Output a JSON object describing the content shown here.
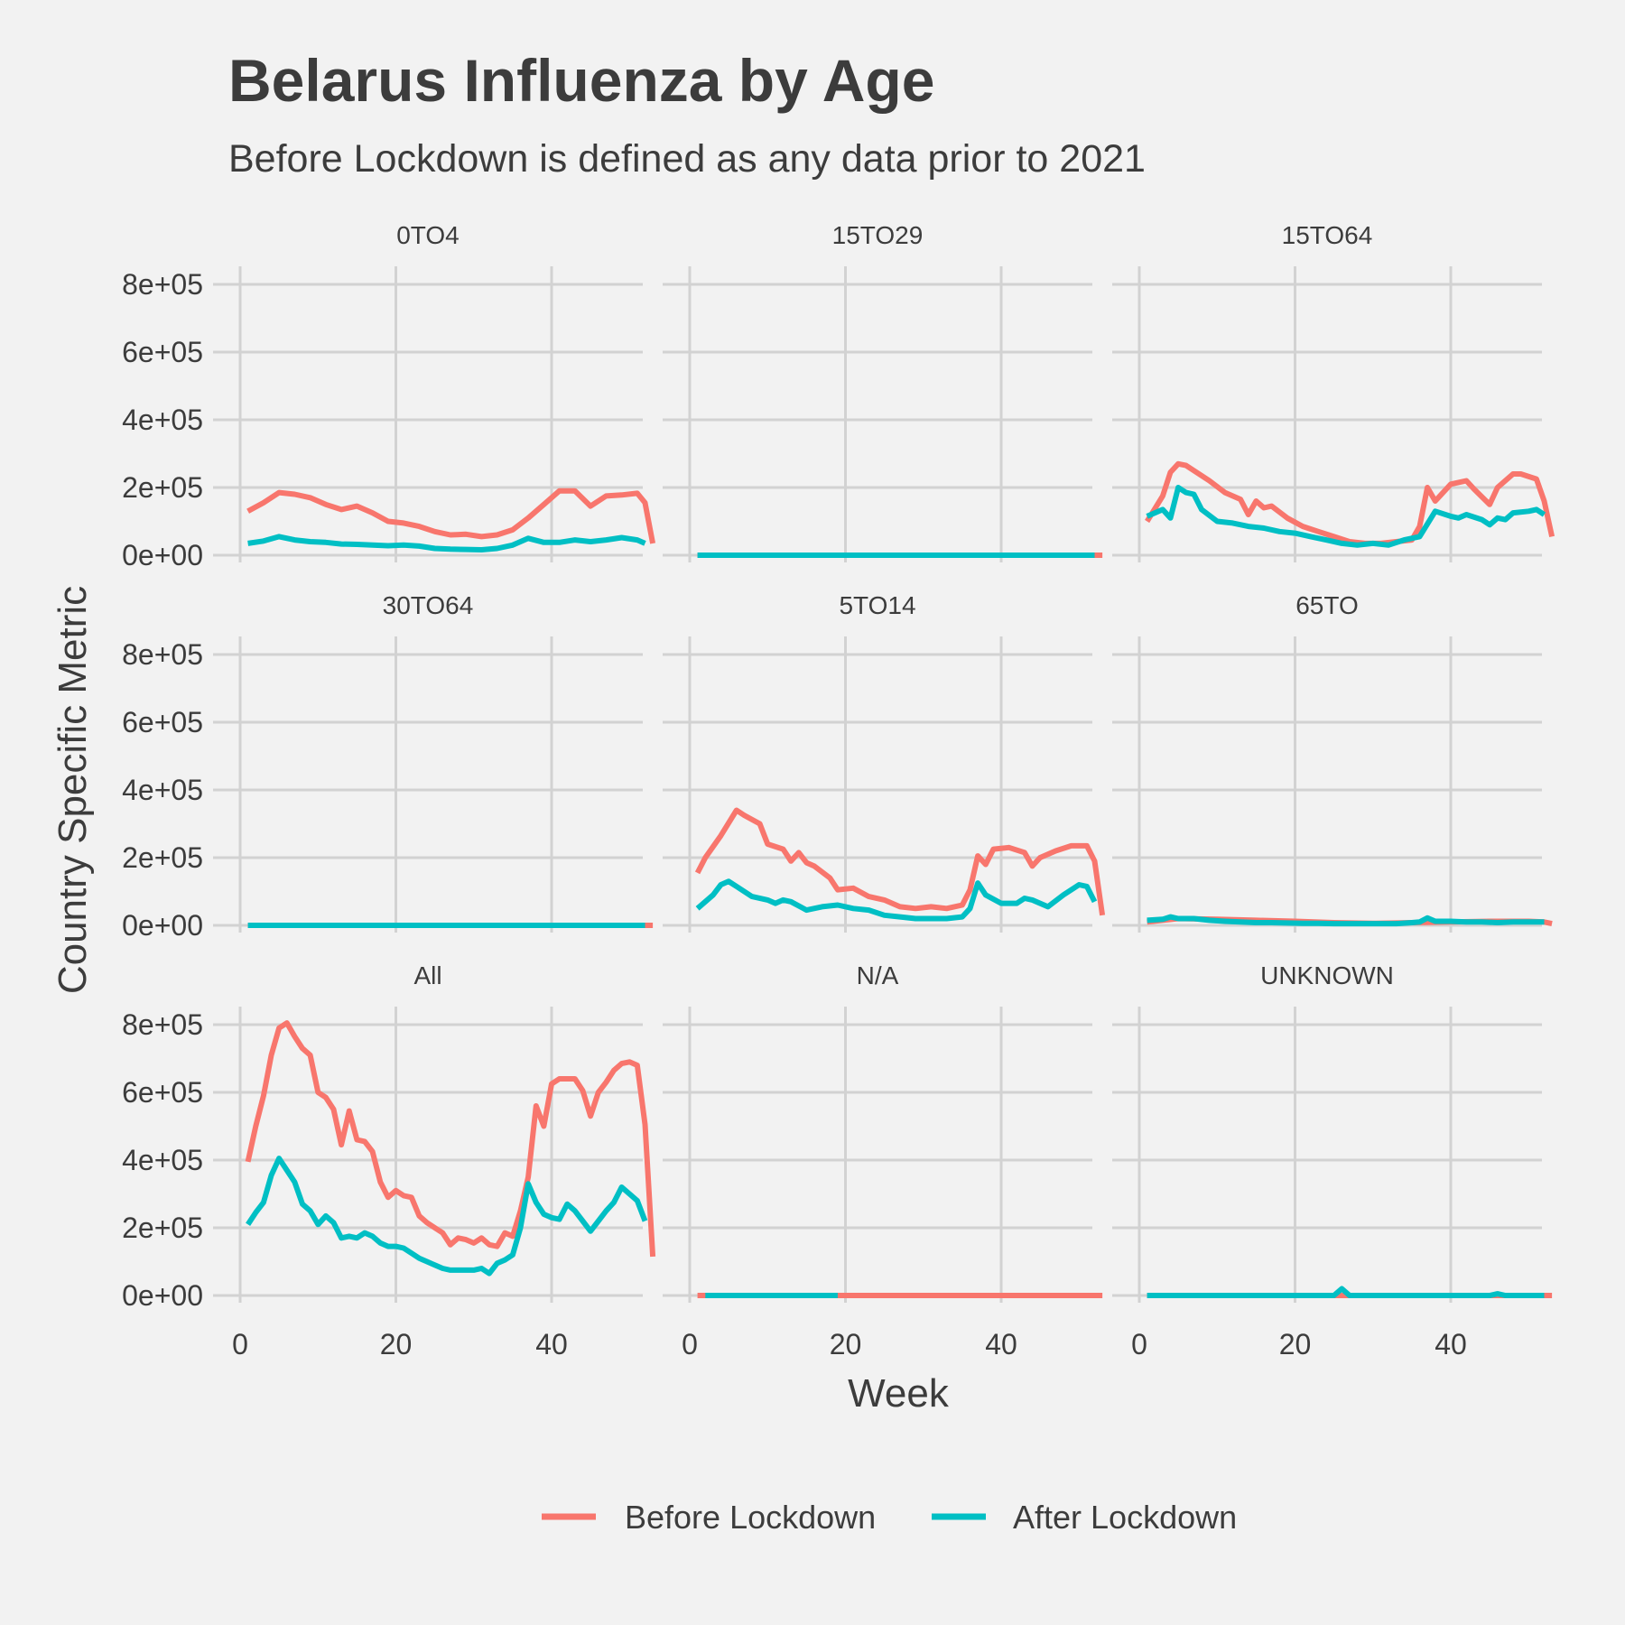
{
  "chart_data": {
    "type": "line",
    "title": "Belarus Influenza by Age",
    "subtitle": "Before Lockdown is defined as any data prior to 2021",
    "xlabel": "Week",
    "ylabel": "Country Specific Metric",
    "xlim": [
      0,
      53
    ],
    "ylim": [
      0,
      800000
    ],
    "x_ticks": [
      0,
      20,
      40
    ],
    "x_tick_labels": [
      "0",
      "20",
      "40"
    ],
    "y_ticks": [
      0,
      200000,
      400000,
      600000,
      800000
    ],
    "y_tick_labels": [
      "0e+00",
      "2e+05",
      "4e+05",
      "6e+05",
      "8e+05"
    ],
    "grid": true,
    "legend": {
      "placement": "bottom",
      "entries": [
        {
          "name": "Before Lockdown",
          "color": "#F8766D"
        },
        {
          "name": "After Lockdown",
          "color": "#00BFC4"
        }
      ]
    },
    "facets": [
      {
        "label": "0TO4",
        "series": [
          {
            "name": "Before Lockdown",
            "color": "#F8766D",
            "x": [
              1,
              3,
              5,
              7,
              9,
              11,
              13,
              15,
              17,
              19,
              21,
              23,
              25,
              27,
              29,
              31,
              33,
              35,
              37,
              39,
              41,
              43,
              45,
              47,
              49,
              51,
              52,
              53
            ],
            "y": [
              130000,
              155000,
              185000,
              180000,
              170000,
              150000,
              135000,
              145000,
              125000,
              100000,
              95000,
              85000,
              70000,
              60000,
              62000,
              55000,
              60000,
              75000,
              110000,
              150000,
              190000,
              190000,
              145000,
              175000,
              178000,
              183000,
              155000,
              35000
            ]
          },
          {
            "name": "After Lockdown",
            "color": "#00BFC4",
            "x": [
              1,
              3,
              5,
              7,
              9,
              11,
              13,
              15,
              17,
              19,
              21,
              23,
              25,
              27,
              29,
              31,
              33,
              35,
              37,
              39,
              41,
              43,
              45,
              47,
              49,
              51,
              52
            ],
            "y": [
              35000,
              42000,
              55000,
              45000,
              40000,
              38000,
              33000,
              32000,
              30000,
              28000,
              30000,
              27000,
              20000,
              18000,
              17000,
              16000,
              20000,
              30000,
              50000,
              38000,
              38000,
              45000,
              40000,
              45000,
              52000,
              45000,
              35000
            ]
          }
        ]
      },
      {
        "label": "15TO29",
        "series": [
          {
            "name": "Before Lockdown",
            "color": "#F8766D",
            "x": [
              1,
              53
            ],
            "y": [
              0,
              0
            ]
          },
          {
            "name": "After Lockdown",
            "color": "#00BFC4",
            "x": [
              1,
              52
            ],
            "y": [
              0,
              0
            ]
          }
        ]
      },
      {
        "label": "15TO64",
        "series": [
          {
            "name": "Before Lockdown",
            "color": "#F8766D",
            "x": [
              1,
              3,
              4,
              5,
              6,
              7,
              9,
              11,
              13,
              14,
              15,
              16,
              17,
              19,
              21,
              23,
              25,
              27,
              29,
              31,
              33,
              35,
              36,
              37,
              38,
              40,
              42,
              43,
              45,
              46,
              48,
              49,
              51,
              52,
              53
            ],
            "y": [
              100000,
              175000,
              245000,
              270000,
              265000,
              250000,
              220000,
              185000,
              165000,
              120000,
              160000,
              140000,
              145000,
              110000,
              85000,
              70000,
              55000,
              40000,
              35000,
              35000,
              40000,
              45000,
              85000,
              200000,
              160000,
              210000,
              220000,
              195000,
              150000,
              200000,
              240000,
              240000,
              225000,
              160000,
              55000
            ]
          },
          {
            "name": "After Lockdown",
            "color": "#00BFC4",
            "x": [
              1,
              2,
              3,
              4,
              5,
              6,
              7,
              8,
              10,
              12,
              14,
              16,
              18,
              20,
              22,
              24,
              26,
              28,
              30,
              32,
              34,
              36,
              38,
              40,
              41,
              42,
              44,
              45,
              46,
              47,
              48,
              50,
              51,
              52
            ],
            "y": [
              115000,
              125000,
              135000,
              110000,
              200000,
              185000,
              180000,
              135000,
              100000,
              95000,
              85000,
              80000,
              70000,
              65000,
              55000,
              45000,
              35000,
              30000,
              35000,
              30000,
              45000,
              55000,
              130000,
              115000,
              110000,
              120000,
              105000,
              90000,
              110000,
              105000,
              125000,
              130000,
              135000,
              120000
            ]
          }
        ]
      },
      {
        "label": "30TO64",
        "series": [
          {
            "name": "Before Lockdown",
            "color": "#F8766D",
            "x": [
              1,
              53
            ],
            "y": [
              0,
              0
            ]
          },
          {
            "name": "After Lockdown",
            "color": "#00BFC4",
            "x": [
              1,
              52
            ],
            "y": [
              0,
              0
            ]
          }
        ]
      },
      {
        "label": "5TO14",
        "series": [
          {
            "name": "Before Lockdown",
            "color": "#F8766D",
            "x": [
              1,
              2,
              4,
              6,
              7,
              9,
              10,
              12,
              13,
              14,
              15,
              16,
              18,
              19,
              21,
              23,
              25,
              27,
              29,
              31,
              33,
              35,
              36,
              37,
              38,
              39,
              41,
              43,
              44,
              45,
              47,
              49,
              51,
              52,
              53
            ],
            "y": [
              155000,
              200000,
              265000,
              340000,
              325000,
              300000,
              240000,
              225000,
              190000,
              215000,
              185000,
              175000,
              140000,
              105000,
              110000,
              85000,
              75000,
              55000,
              50000,
              55000,
              50000,
              60000,
              105000,
              205000,
              180000,
              225000,
              230000,
              215000,
              175000,
              200000,
              220000,
              235000,
              235000,
              190000,
              30000
            ]
          },
          {
            "name": "After Lockdown",
            "color": "#00BFC4",
            "x": [
              1,
              3,
              4,
              5,
              6,
              8,
              10,
              11,
              12,
              13,
              15,
              17,
              19,
              21,
              23,
              25,
              27,
              29,
              31,
              33,
              35,
              36,
              37,
              38,
              40,
              42,
              43,
              44,
              46,
              48,
              50,
              51,
              52
            ],
            "y": [
              50000,
              90000,
              120000,
              130000,
              115000,
              85000,
              75000,
              65000,
              75000,
              70000,
              45000,
              55000,
              60000,
              50000,
              45000,
              30000,
              25000,
              20000,
              20000,
              20000,
              25000,
              50000,
              125000,
              90000,
              65000,
              65000,
              80000,
              75000,
              55000,
              90000,
              120000,
              115000,
              70000
            ]
          }
        ]
      },
      {
        "label": "65TO",
        "series": [
          {
            "name": "Before Lockdown",
            "color": "#F8766D",
            "x": [
              1,
              5,
              10,
              15,
              20,
              25,
              30,
              35,
              40,
              45,
              50,
              52,
              53
            ],
            "y": [
              10000,
              20000,
              18000,
              15000,
              12000,
              8000,
              6000,
              8000,
              10000,
              12000,
              12000,
              10000,
              5000
            ]
          },
          {
            "name": "After Lockdown",
            "color": "#00BFC4",
            "x": [
              1,
              3,
              4,
              5,
              7,
              9,
              11,
              13,
              15,
              17,
              19,
              21,
              23,
              25,
              27,
              29,
              31,
              33,
              35,
              36,
              37,
              38,
              40,
              42,
              44,
              46,
              48,
              50,
              52
            ],
            "y": [
              15000,
              18000,
              25000,
              20000,
              20000,
              15000,
              12000,
              10000,
              8000,
              8000,
              7000,
              6000,
              6000,
              5000,
              5000,
              5000,
              5000,
              5000,
              8000,
              10000,
              22000,
              12000,
              12000,
              10000,
              10000,
              8000,
              10000,
              10000,
              10000
            ]
          }
        ]
      },
      {
        "label": "All",
        "series": [
          {
            "name": "Before Lockdown",
            "color": "#F8766D",
            "x": [
              1,
              2,
              3,
              4,
              5,
              6,
              7,
              8,
              9,
              10,
              11,
              12,
              13,
              14,
              15,
              16,
              17,
              18,
              19,
              20,
              21,
              22,
              23,
              24,
              25,
              26,
              27,
              28,
              29,
              30,
              31,
              32,
              33,
              34,
              35,
              36,
              37,
              38,
              39,
              40,
              41,
              42,
              43,
              44,
              45,
              46,
              47,
              48,
              49,
              50,
              51,
              52,
              53
            ],
            "y": [
              395000,
              500000,
              590000,
              710000,
              790000,
              805000,
              765000,
              730000,
              710000,
              600000,
              585000,
              550000,
              445000,
              545000,
              460000,
              455000,
              425000,
              335000,
              290000,
              310000,
              295000,
              290000,
              235000,
              215000,
              200000,
              185000,
              150000,
              170000,
              165000,
              155000,
              170000,
              150000,
              145000,
              185000,
              175000,
              250000,
              350000,
              560000,
              500000,
              625000,
              640000,
              640000,
              640000,
              605000,
              530000,
              600000,
              630000,
              665000,
              685000,
              690000,
              680000,
              505000,
              115000
            ]
          },
          {
            "name": "After Lockdown",
            "color": "#00BFC4",
            "x": [
              1,
              2,
              3,
              4,
              5,
              6,
              7,
              8,
              9,
              10,
              11,
              12,
              13,
              14,
              15,
              16,
              17,
              18,
              19,
              20,
              21,
              22,
              23,
              24,
              25,
              26,
              27,
              28,
              29,
              30,
              31,
              32,
              33,
              34,
              35,
              36,
              37,
              38,
              39,
              40,
              41,
              42,
              43,
              44,
              45,
              46,
              47,
              48,
              49,
              50,
              51,
              52
            ],
            "y": [
              210000,
              245000,
              275000,
              355000,
              405000,
              370000,
              335000,
              270000,
              250000,
              210000,
              235000,
              215000,
              170000,
              175000,
              170000,
              185000,
              175000,
              155000,
              145000,
              145000,
              140000,
              125000,
              110000,
              100000,
              90000,
              80000,
              75000,
              75000,
              75000,
              75000,
              80000,
              65000,
              95000,
              105000,
              120000,
              200000,
              330000,
              275000,
              240000,
              230000,
              225000,
              270000,
              250000,
              220000,
              190000,
              220000,
              250000,
              275000,
              320000,
              300000,
              280000,
              220000
            ]
          }
        ]
      },
      {
        "label": "N/A",
        "series": [
          {
            "name": "Before Lockdown",
            "color": "#F8766D",
            "x": [
              1,
              53
            ],
            "y": [
              0,
              0
            ]
          },
          {
            "name": "After Lockdown",
            "color": "#00BFC4",
            "x": [
              2,
              19
            ],
            "y": [
              0,
              0
            ]
          }
        ]
      },
      {
        "label": "UNKNOWN",
        "series": [
          {
            "name": "Before Lockdown",
            "color": "#F8766D",
            "x": [
              1,
              53
            ],
            "y": [
              0,
              0
            ]
          },
          {
            "name": "After Lockdown",
            "color": "#00BFC4",
            "x": [
              1,
              25,
              26,
              27,
              45,
              46,
              47,
              52
            ],
            "y": [
              0,
              0,
              20000,
              0,
              0,
              5000,
              0,
              0
            ]
          }
        ]
      }
    ]
  }
}
